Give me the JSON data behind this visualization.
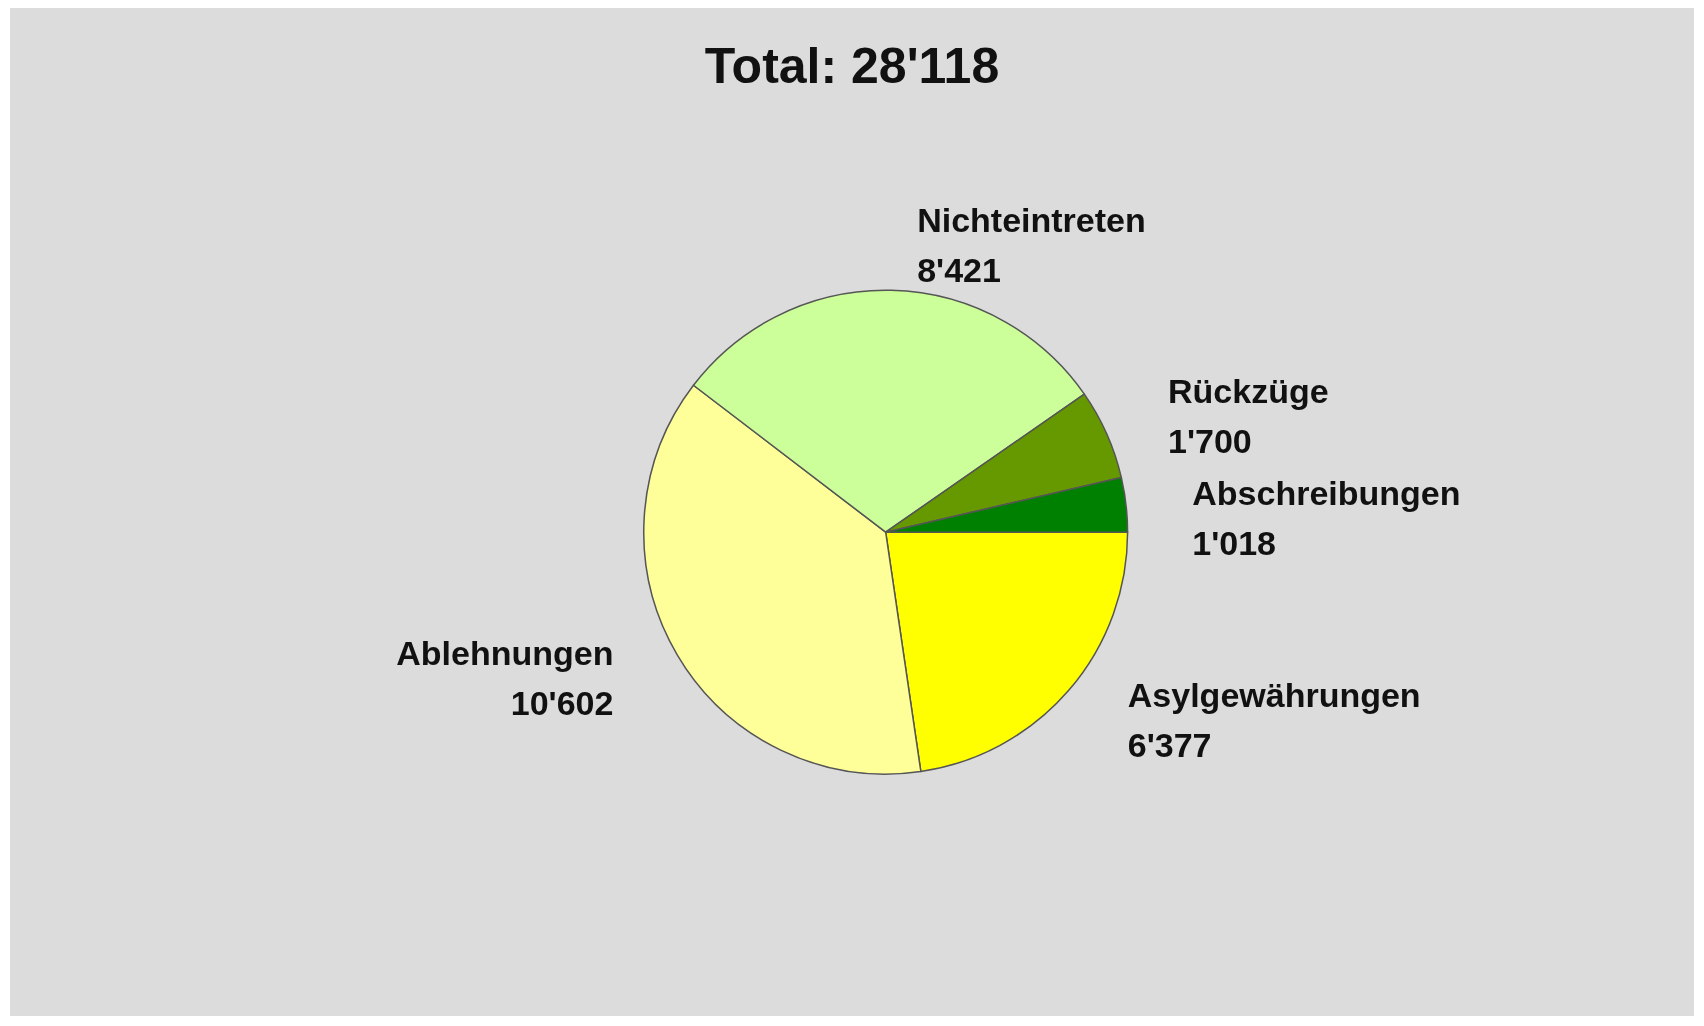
{
  "chart_data": {
    "type": "pie",
    "title": "Total: 28'118",
    "categories": [
      "Asylgewährungen",
      "Ablehnungen",
      "Nichteintreten",
      "Rückzüge",
      "Abschreibungen"
    ],
    "values": [
      6377,
      10602,
      8421,
      1700,
      1018
    ],
    "value_labels": [
      "6'377",
      "10'602",
      "8'421",
      "1'700",
      "1'018"
    ],
    "colors": [
      "#ffff00",
      "#ffff99",
      "#ccff99",
      "#669900",
      "#008000"
    ]
  }
}
